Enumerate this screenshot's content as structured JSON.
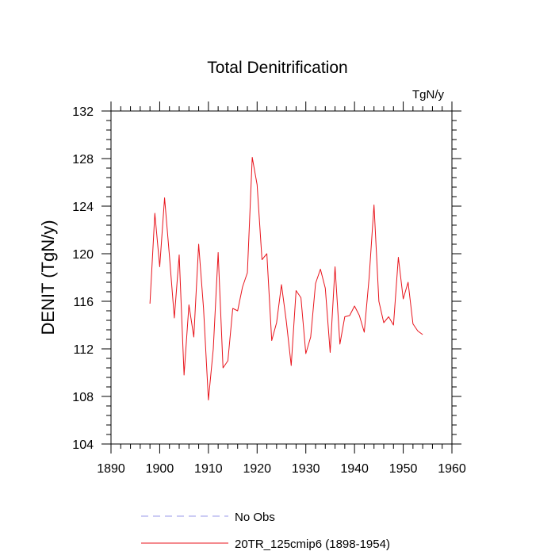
{
  "chart_data": {
    "type": "line",
    "title": "Total Denitrification",
    "unit_label": "TgN/y",
    "ylabel": "DENIT  (TgN/y)",
    "xlabel": "",
    "xlim": [
      1890,
      1960
    ],
    "ylim": [
      104,
      132
    ],
    "xticks": [
      1890,
      1900,
      1910,
      1920,
      1930,
      1940,
      1950,
      1960
    ],
    "yticks": [
      104,
      108,
      112,
      116,
      120,
      124,
      128,
      132
    ],
    "x_minor_step": 2,
    "y_minor_step": 0.8,
    "grid": false,
    "series": [
      {
        "name": "20TR_125cmip6 (1898-1954)",
        "color": "#e8141c",
        "dash": "solid",
        "x": [
          1898,
          1899,
          1900,
          1901,
          1902,
          1903,
          1904,
          1905,
          1906,
          1907,
          1908,
          1909,
          1910,
          1911,
          1912,
          1913,
          1914,
          1915,
          1916,
          1917,
          1918,
          1919,
          1920,
          1921,
          1922,
          1923,
          1924,
          1925,
          1926,
          1927,
          1928,
          1929,
          1930,
          1931,
          1932,
          1933,
          1934,
          1935,
          1936,
          1937,
          1938,
          1939,
          1940,
          1941,
          1942,
          1943,
          1944,
          1945,
          1946,
          1947,
          1948,
          1949,
          1950,
          1951,
          1952,
          1953,
          1954
        ],
        "values": [
          115.8,
          123.4,
          118.9,
          124.7,
          119.8,
          114.6,
          119.9,
          109.8,
          115.7,
          113.0,
          120.8,
          115.4,
          107.7,
          112.0,
          120.1,
          110.4,
          111.0,
          115.4,
          115.2,
          117.2,
          118.4,
          128.1,
          125.8,
          119.5,
          120.0,
          112.7,
          114.2,
          117.4,
          114.3,
          110.6,
          116.9,
          116.3,
          111.6,
          113.0,
          117.5,
          118.7,
          117.1,
          111.7,
          118.9,
          112.4,
          114.7,
          114.8,
          115.6,
          114.8,
          113.4,
          118.0,
          124.1,
          116.0,
          114.2,
          114.7,
          114.0,
          119.7,
          116.2,
          117.6,
          114.1,
          113.5,
          113.2
        ]
      }
    ],
    "legend": [
      {
        "label": "No Obs",
        "color": "#9a9ae8",
        "dash": "dashed"
      },
      {
        "label": "20TR_125cmip6 (1898-1954)",
        "color": "#e8141c",
        "dash": "solid"
      }
    ]
  }
}
